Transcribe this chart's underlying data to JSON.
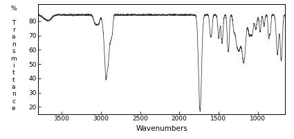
{
  "title": "",
  "xlabel": "Wavenumbers",
  "ylabel_chars": [
    "%",
    " ",
    "T",
    "r",
    "a",
    "n",
    "s",
    "m",
    "i",
    "t",
    "t",
    "a",
    "n",
    "c",
    "e"
  ],
  "xlim": [
    3800,
    650
  ],
  "ylim": [
    15,
    92
  ],
  "yticks": [
    20,
    30,
    40,
    50,
    60,
    70,
    80
  ],
  "xticks": [
    3500,
    3000,
    2500,
    2000,
    1500,
    1000
  ],
  "line_color": "#333333",
  "bg_color": "#ffffff",
  "ylabel_fontsize": 6.5,
  "xlabel_fontsize": 7.5,
  "tick_fontsize": 6.5
}
